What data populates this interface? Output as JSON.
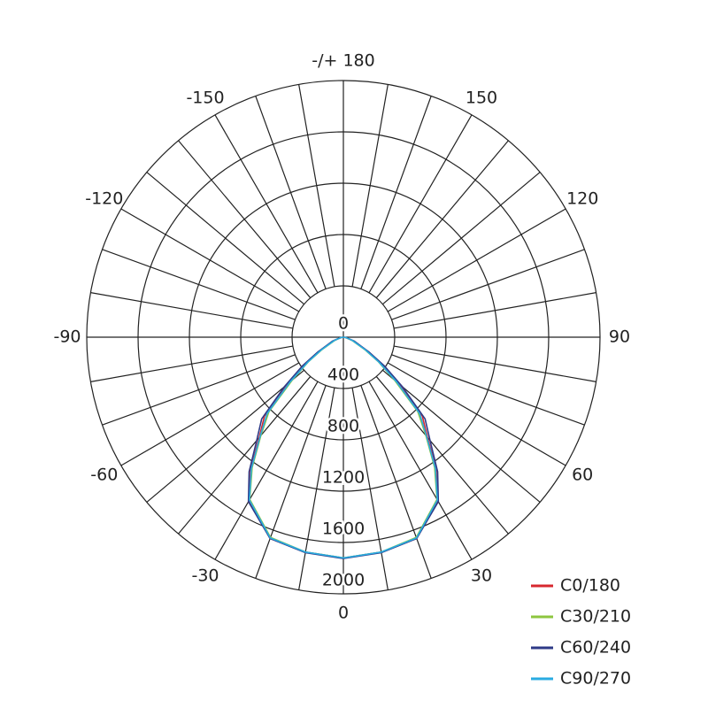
{
  "chart_data": {
    "type": "polar",
    "angles": [
      -90,
      -80,
      -70,
      -60,
      -55,
      -50,
      -45,
      -40,
      -35,
      -30,
      -20,
      -10,
      0,
      10,
      20,
      30,
      35,
      40,
      45,
      50,
      55,
      60,
      70,
      80,
      90
    ],
    "series": [
      {
        "name": "C0/180",
        "color": "#d7282f",
        "values": [
          0,
          20,
          80,
          210,
          360,
          560,
          870,
          1020,
          1260,
          1470,
          1670,
          1700,
          1720,
          1700,
          1670,
          1470,
          1260,
          1020,
          870,
          560,
          360,
          210,
          80,
          20,
          0
        ]
      },
      {
        "name": "C30/210",
        "color": "#8dc63f",
        "values": [
          0,
          20,
          70,
          190,
          330,
          520,
          820,
          1000,
          1240,
          1460,
          1660,
          1700,
          1720,
          1700,
          1660,
          1460,
          1240,
          1000,
          820,
          520,
          330,
          190,
          70,
          20,
          0
        ]
      },
      {
        "name": "C60/240",
        "color": "#2e3a87",
        "values": [
          0,
          25,
          90,
          230,
          390,
          600,
          900,
          1050,
          1280,
          1480,
          1670,
          1705,
          1725,
          1705,
          1670,
          1480,
          1280,
          1050,
          900,
          600,
          390,
          230,
          90,
          25,
          0
        ]
      },
      {
        "name": "C90/270",
        "color": "#29abe2",
        "values": [
          0,
          20,
          75,
          200,
          340,
          540,
          840,
          1010,
          1250,
          1465,
          1665,
          1700,
          1720,
          1700,
          1665,
          1465,
          1250,
          1010,
          840,
          540,
          340,
          200,
          75,
          20,
          0
        ]
      }
    ],
    "rlim": [
      0,
      2000
    ],
    "rticks": [
      0,
      400,
      800,
      1200,
      1600,
      2000
    ],
    "angle_ticks": [
      0,
      30,
      60,
      90,
      120,
      150,
      {
        "value": 180,
        "label": "-/+ 180"
      },
      -150,
      -120,
      -90,
      -60,
      -30
    ]
  }
}
